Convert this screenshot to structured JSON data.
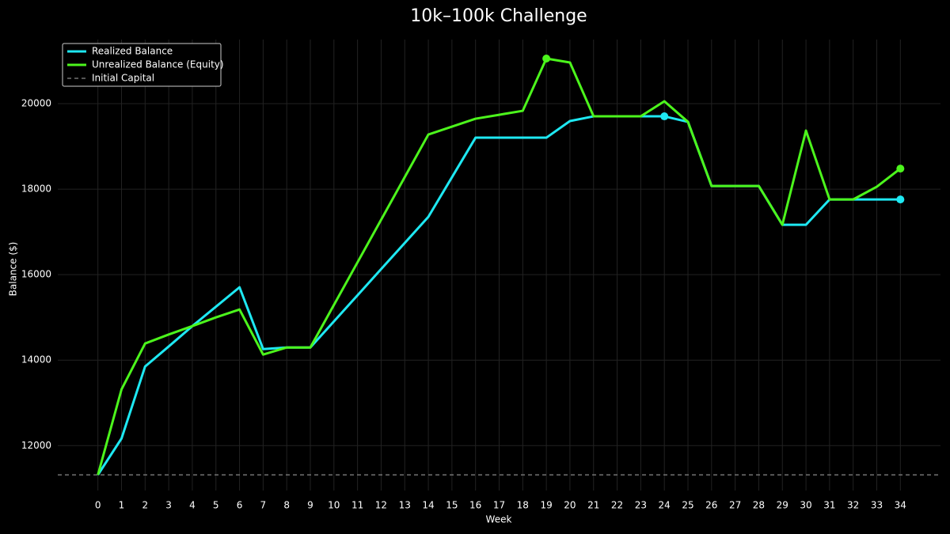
{
  "chart_data": {
    "type": "line",
    "title": "10k–100k Challenge",
    "x_label": "Week",
    "y_label": "Balance ($)",
    "x": [
      0,
      1,
      2,
      3,
      4,
      5,
      6,
      7,
      8,
      9,
      10,
      11,
      12,
      13,
      14,
      15,
      16,
      17,
      18,
      19,
      20,
      21,
      22,
      23,
      24,
      25,
      26,
      27,
      28,
      29,
      30,
      31,
      32,
      33,
      34
    ],
    "series": [
      {
        "name": "Realized Balance",
        "color": "#1ee8f2",
        "values": [
          11315,
          12167,
          13852,
          14320,
          14796,
          15250,
          15704,
          14259,
          14296,
          14296,
          14907,
          15518,
          16130,
          16741,
          17352,
          18278,
          19204,
          19204,
          19204,
          19204,
          19593,
          19704,
          19704,
          19704,
          19704,
          19574,
          18074,
          18074,
          18074,
          17167,
          17167,
          17759,
          17759,
          17759,
          17759
        ]
      },
      {
        "name": "Unrealized Balance (Equity)",
        "color": "#4cf51c",
        "values": [
          11315,
          13315,
          14389,
          14600,
          14796,
          15000,
          15185,
          14130,
          14296,
          14296,
          15292,
          16289,
          17285,
          18282,
          19278,
          19463,
          19648,
          19740,
          19833,
          21056,
          20963,
          19704,
          19704,
          19704,
          20056,
          19574,
          18074,
          18074,
          18074,
          17167,
          19370,
          17759,
          17759,
          18056,
          18481
        ]
      }
    ],
    "reference_lines": [
      {
        "name": "Initial Capital",
        "value": 11315,
        "color": "#888888"
      }
    ],
    "xlim": [
      -1.7,
      35.7
    ],
    "xticks": [
      0,
      1,
      2,
      3,
      4,
      5,
      6,
      7,
      8,
      9,
      10,
      11,
      12,
      13,
      14,
      15,
      16,
      17,
      18,
      19,
      20,
      21,
      22,
      23,
      24,
      25,
      26,
      27,
      28,
      29,
      30,
      31,
      32,
      33,
      34
    ],
    "ylim": [
      10950,
      21500
    ],
    "yticks": [
      12000,
      14000,
      16000,
      18000,
      20000
    ],
    "grid": true,
    "legend": "upper left"
  }
}
